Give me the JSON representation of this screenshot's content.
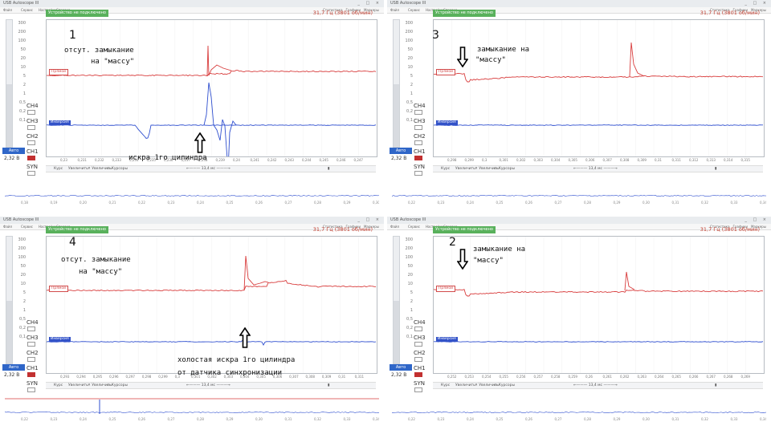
{
  "app": {
    "window_title": "USB Autoscope III",
    "titlebar_controls": "_ □ ×",
    "menu": [
      "Файл",
      "Сервис",
      "Настройки",
      "Справка"
    ],
    "menu_right": [
      "Статистика",
      "Графики",
      "Маркеры"
    ],
    "status": "Устройство не подключено",
    "frequency": "31,7 Гц (3801 об/мин)",
    "y_scale_ticks": [
      "300",
      "200",
      "100",
      "50",
      "20",
      "10",
      "5",
      "2",
      "1",
      "0,5",
      "0,2",
      "0,1"
    ],
    "channels": [
      "CH4",
      "CH3",
      "CH2",
      "CH1",
      "SYN"
    ],
    "auto_button": "Авто",
    "voltage": "2,32 В",
    "primary_label": "Прямой",
    "inverse_label": "Инверсия",
    "bottom_controls": {
      "left1": "Курс",
      "left2": "Увеличить",
      "cursors": "Курсоры",
      "duration": "13,4 мс"
    },
    "colors": {
      "red_trace": "#d83b3b",
      "blue_trace": "#2f4fcf",
      "status_green": "#59b15c",
      "frequency_red": "#c03a2b"
    }
  },
  "panels": [
    {
      "id": "p1",
      "number": "1",
      "x_ticks": [
        "0,23",
        "0,231",
        "0,232",
        "0,233",
        "0,234",
        "0,235",
        "0,236",
        "0,237",
        "0,238",
        "0,239",
        "0,24",
        "0,241",
        "0,242",
        "0,243",
        "0,244",
        "0,245",
        "0,246",
        "0,247"
      ],
      "overview_ticks": [
        "0,18",
        "0,19",
        "0,20",
        "0,21",
        "0,22",
        "0,23",
        "0,24",
        "0,25",
        "0,26",
        "0,27",
        "0,28",
        "0,29",
        "0,30"
      ],
      "annotations": [
        {
          "key": "a1",
          "text": "отсут. замыкание"
        },
        {
          "key": "a2",
          "text": "на \"массу\""
        },
        {
          "key": "a3",
          "text": "искра 1го цилиндра"
        }
      ]
    },
    {
      "id": "p3",
      "number": "3",
      "x_ticks": [
        "0,298",
        "0,299",
        "0,3",
        "0,301",
        "0,302",
        "0,303",
        "0,304",
        "0,305",
        "0,306",
        "0,307",
        "0,308",
        "0,309",
        "0,31",
        "0,311",
        "0,312",
        "0,313",
        "0,314",
        "0,315"
      ],
      "overview_ticks": [
        "0,22",
        "0,23",
        "0,24",
        "0,25",
        "0,26",
        "0,27",
        "0,28",
        "0,29",
        "0,30",
        "0,31",
        "0,32",
        "0,33",
        "0,34"
      ],
      "annotations": [
        {
          "key": "a1",
          "text": "замыкание на"
        },
        {
          "key": "a2",
          "text": "\"массу\""
        }
      ]
    },
    {
      "id": "p4",
      "number": "4",
      "x_ticks": [
        "0,293",
        "0,294",
        "0,295",
        "0,296",
        "0,297",
        "0,298",
        "0,299",
        "0,3",
        "0,301",
        "0,302",
        "0,303",
        "0,304",
        "0,305",
        "0,306",
        "0,307",
        "0,308",
        "0,309",
        "0,31",
        "0,311"
      ],
      "overview_ticks": [
        "0,22",
        "0,23",
        "0,24",
        "0,25",
        "0,26",
        "0,27",
        "0,28",
        "0,29",
        "0,30",
        "0,31",
        "0,32",
        "0,33",
        "0,34"
      ],
      "annotations": [
        {
          "key": "a1",
          "text": "отсут. замыкание"
        },
        {
          "key": "a2",
          "text": "на \"массу\""
        },
        {
          "key": "a3",
          "text": "холостая искра 1го цилиндра"
        },
        {
          "key": "a4",
          "text": "от датчика синхронизации"
        }
      ]
    },
    {
      "id": "p2",
      "number": "2",
      "x_ticks": [
        "0,252",
        "0,253",
        "0,254",
        "0,255",
        "0,256",
        "0,257",
        "0,258",
        "0,259",
        "0,26",
        "0,261",
        "0,262",
        "0,263",
        "0,264",
        "0,265",
        "0,266",
        "0,267",
        "0,268",
        "0,269"
      ],
      "overview_ticks": [
        "0,22",
        "0,23",
        "0,24",
        "0,25",
        "0,26",
        "0,27",
        "0,28",
        "0,29",
        "0,30",
        "0,31",
        "0,32",
        "0,33",
        "0,34"
      ],
      "annotations": [
        {
          "key": "a1",
          "text": "замыкание на"
        },
        {
          "key": "a2",
          "text": "\"массу\""
        }
      ]
    }
  ]
}
